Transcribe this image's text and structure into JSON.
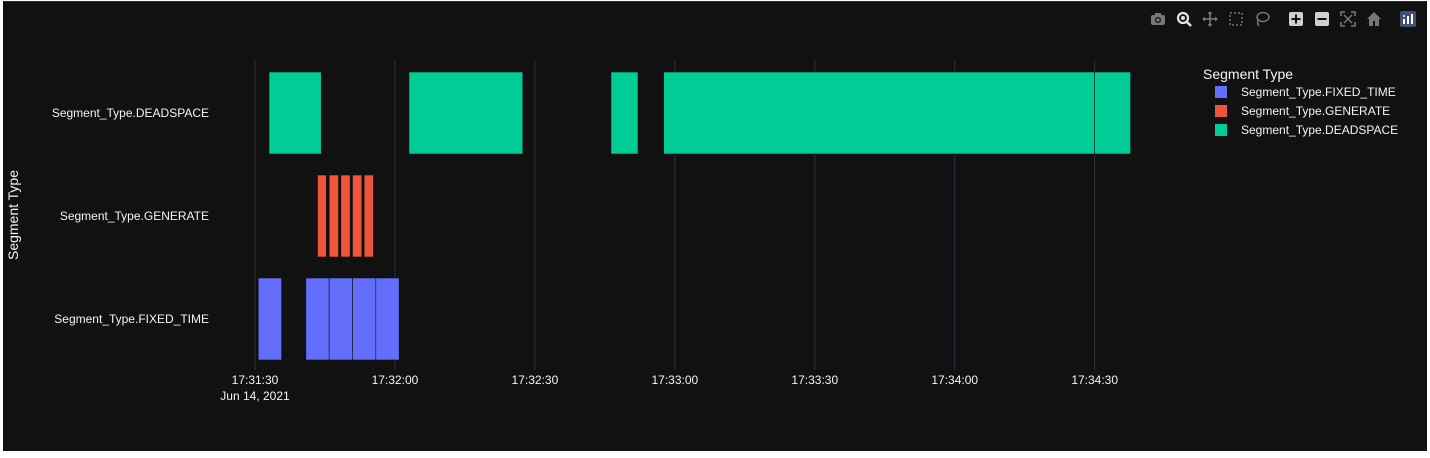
{
  "modebar": {
    "icons": [
      "camera-icon",
      "zoom-icon",
      "pan-icon",
      "box-select-icon",
      "lasso-select-icon",
      "zoom-in-icon",
      "zoom-out-icon",
      "autoscale-icon",
      "reset-axes-icon",
      "plotly-logo-icon"
    ]
  },
  "colors": {
    "background": "#111111",
    "grid": "#283442",
    "text": "#f2f5fa",
    "fixed_time": "#636efa",
    "generate": "#ef553b",
    "deadspace": "#00cc96"
  },
  "chart_data": {
    "type": "timeline",
    "xlabel": "",
    "ylabel": "Segment Type",
    "categories": [
      "Segment_Type.FIXED_TIME",
      "Segment_Type.GENERATE",
      "Segment_Type.DEADSPACE"
    ],
    "xlim": [
      "17:31:30",
      "17:34:38"
    ],
    "x_ticks": [
      {
        "time": "17:31:30",
        "label": "17:31:30",
        "sublabel": "Jun 14, 2021"
      },
      {
        "time": "17:32:00",
        "label": "17:32:00",
        "sublabel": ""
      },
      {
        "time": "17:32:30",
        "label": "17:32:30",
        "sublabel": ""
      },
      {
        "time": "17:33:00",
        "label": "17:33:00",
        "sublabel": ""
      },
      {
        "time": "17:33:30",
        "label": "17:33:30",
        "sublabel": ""
      },
      {
        "time": "17:34:00",
        "label": "17:34:00",
        "sublabel": ""
      },
      {
        "time": "17:34:30",
        "label": "17:34:30",
        "sublabel": ""
      }
    ],
    "legend": {
      "title": "Segment Type",
      "position": "right",
      "entries": [
        {
          "name": "Segment_Type.FIXED_TIME",
          "color": "#636efa"
        },
        {
          "name": "Segment_Type.GENERATE",
          "color": "#ef553b"
        },
        {
          "name": "Segment_Type.DEADSPACE",
          "color": "#00cc96"
        }
      ]
    },
    "series": [
      {
        "name": "Segment_Type.FIXED_TIME",
        "row": "Segment_Type.FIXED_TIME",
        "color": "#636efa",
        "segments": [
          {
            "start": "17:31:30.7",
            "end": "17:31:35.7"
          },
          {
            "start": "17:31:40.9",
            "end": "17:31:45.9"
          },
          {
            "start": "17:31:45.9",
            "end": "17:31:50.9"
          },
          {
            "start": "17:31:50.9",
            "end": "17:31:55.9"
          },
          {
            "start": "17:31:55.9",
            "end": "17:32:00.9"
          }
        ]
      },
      {
        "name": "Segment_Type.GENERATE",
        "row": "Segment_Type.GENERATE",
        "color": "#ef553b",
        "segments": [
          {
            "start": "17:31:43.4",
            "end": "17:31:45.3"
          },
          {
            "start": "17:31:45.9",
            "end": "17:31:47.9"
          },
          {
            "start": "17:31:48.4",
            "end": "17:31:50.4"
          },
          {
            "start": "17:31:50.9",
            "end": "17:31:52.9"
          },
          {
            "start": "17:31:53.4",
            "end": "17:31:55.4"
          }
        ]
      },
      {
        "name": "Segment_Type.DEADSPACE",
        "row": "Segment_Type.DEADSPACE",
        "color": "#00cc96",
        "segments": [
          {
            "start": "17:31:33.0",
            "end": "17:31:44.2"
          },
          {
            "start": "17:32:03.0",
            "end": "17:32:27.4"
          },
          {
            "start": "17:32:46.3",
            "end": "17:32:52.1"
          },
          {
            "start": "17:32:57.6",
            "end": "17:34:30.0"
          },
          {
            "start": "17:34:30.0",
            "end": "17:34:37.7"
          }
        ]
      }
    ]
  }
}
